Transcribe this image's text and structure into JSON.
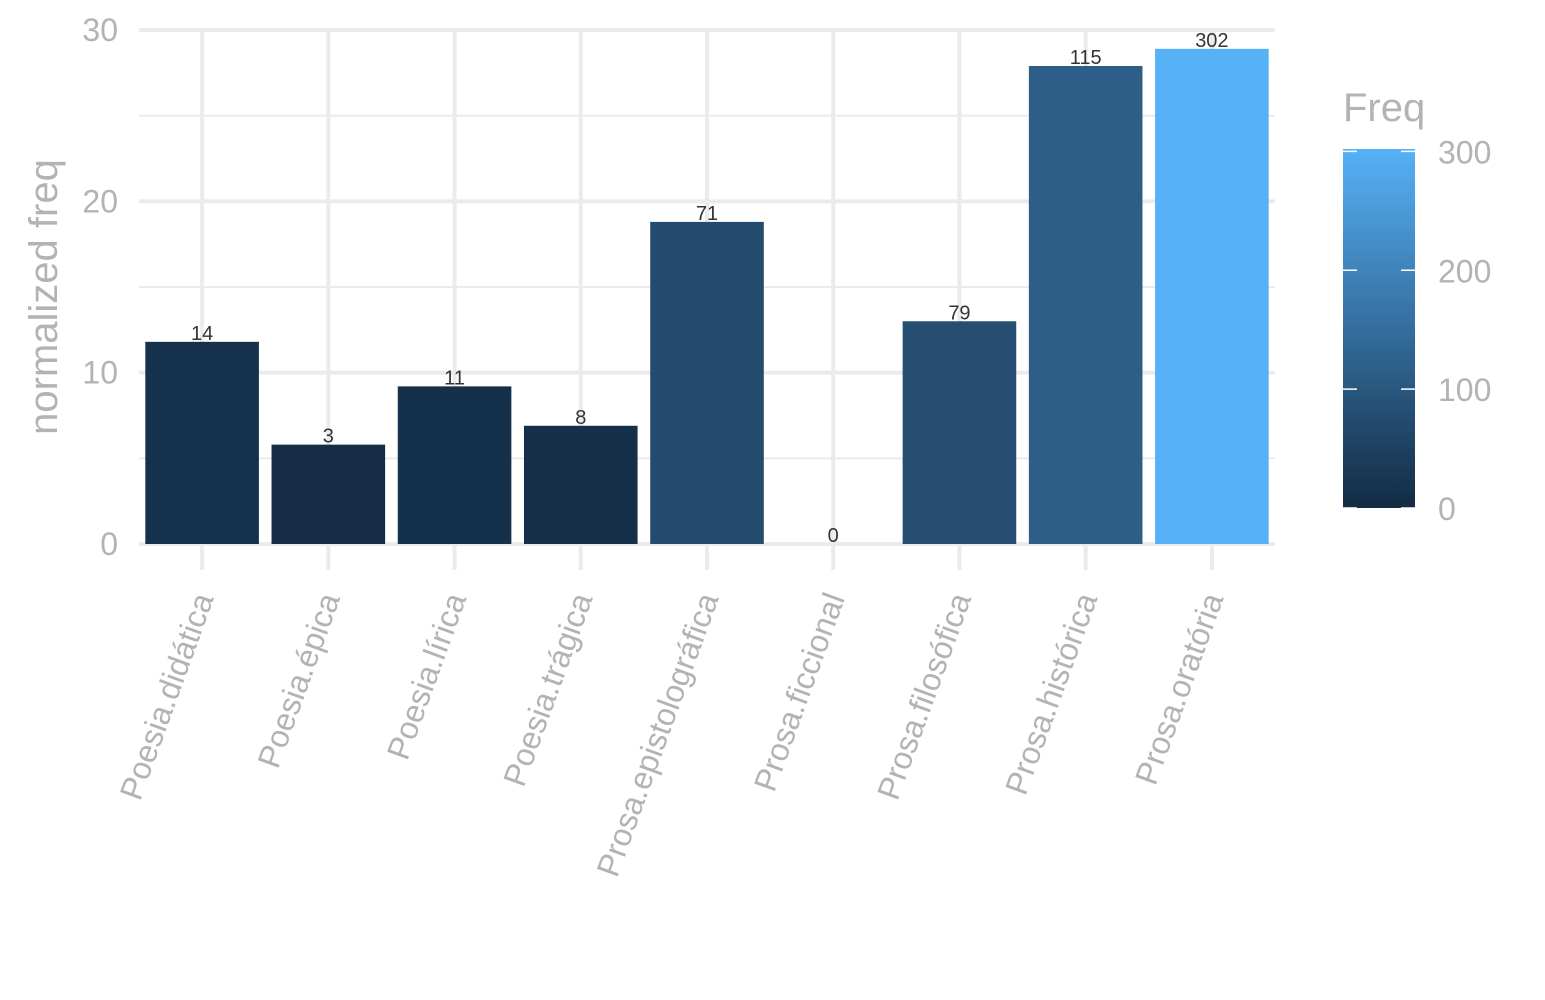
{
  "chart_data": {
    "type": "bar",
    "categories": [
      "Poesia.didática",
      "Poesia.épica",
      "Poesia.lírica",
      "Poesia.trágica",
      "Prosa.epistolográfica",
      "Prosa.ficcional",
      "Prosa.filosófica",
      "Prosa.histórica",
      "Prosa.oratória"
    ],
    "values": [
      11.8,
      5.8,
      9.2,
      6.9,
      18.8,
      0,
      13.0,
      27.9,
      28.9
    ],
    "freq": [
      14,
      3,
      11,
      8,
      71,
      0,
      79,
      115,
      302
    ],
    "data_labels": [
      "14",
      "3",
      "11",
      "8",
      "71",
      "0",
      "79",
      "115",
      "302"
    ],
    "ylabel": "normalized freq",
    "xlabel": "",
    "ylim": [
      0,
      30
    ],
    "yticks": [
      0,
      10,
      20,
      30
    ],
    "ytick_labels": [
      "0",
      "10",
      "20",
      "30"
    ],
    "grid": true,
    "legend": {
      "title": "Freq",
      "placement": "right",
      "type": "colorbar",
      "range": [
        0,
        302
      ],
      "ticks": [
        0,
        100,
        200,
        300
      ],
      "tick_labels": [
        "0",
        "100",
        "200",
        "300"
      ],
      "low_color": "#132B43",
      "high_color": "#56B1F7"
    }
  }
}
